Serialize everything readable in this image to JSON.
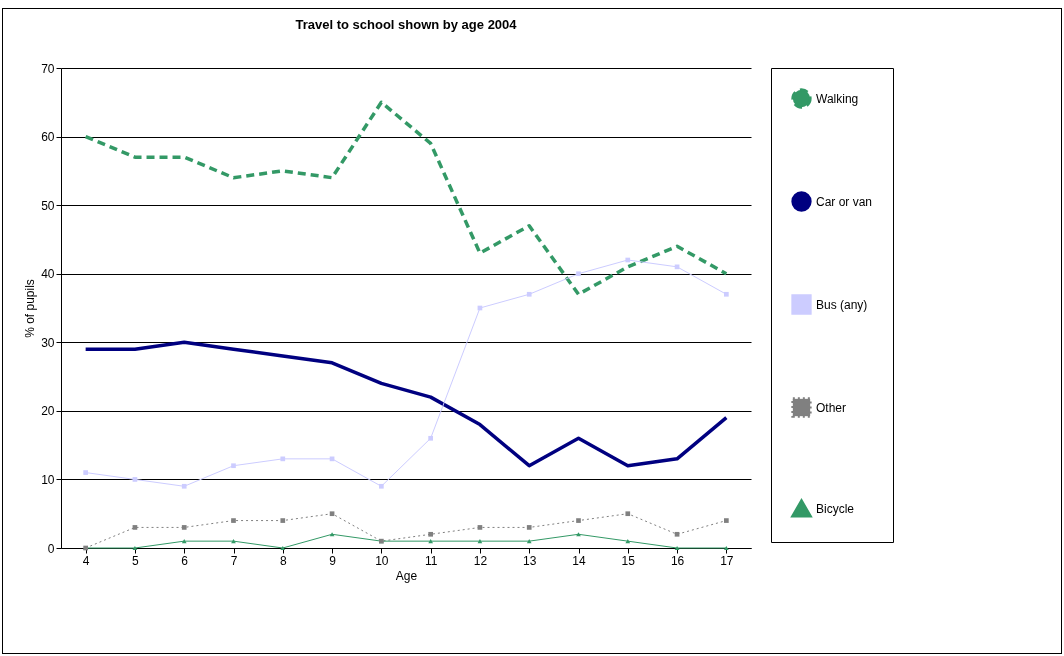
{
  "chart_data": {
    "type": "line",
    "title": "Travel to school shown by age 2004",
    "xlabel": "Age",
    "ylabel": "% of pupils",
    "categories": [
      "4",
      "5",
      "6",
      "7",
      "8",
      "9",
      "10",
      "11",
      "12",
      "13",
      "14",
      "15",
      "16",
      "17"
    ],
    "series": [
      {
        "name": "Walking",
        "color": "#339966",
        "line_style": "dashed",
        "marker": "none",
        "values": [
          60,
          57,
          57,
          54,
          55,
          54,
          65,
          59,
          43,
          47,
          37,
          41,
          44,
          40
        ]
      },
      {
        "name": "Car or van",
        "color": "#000080",
        "line_style": "solid",
        "marker": "none",
        "values": [
          29,
          29,
          30,
          29,
          28,
          27,
          24,
          22,
          18,
          12,
          16,
          12,
          13,
          19
        ]
      },
      {
        "name": "Bus (any)",
        "color": "#ccccff",
        "line_style": "solid",
        "marker": "square",
        "values": [
          11,
          10,
          9,
          12,
          13,
          13,
          9,
          16,
          35,
          37,
          40,
          42,
          41,
          37
        ]
      },
      {
        "name": "Other",
        "color": "#808080",
        "line_style": "dotted",
        "marker": "square",
        "values": [
          0,
          3,
          3,
          4,
          4,
          5,
          1,
          2,
          3,
          3,
          4,
          5,
          2,
          4
        ]
      },
      {
        "name": "Bicycle",
        "color": "#339966",
        "line_style": "solid",
        "marker": "triangle",
        "values": [
          0,
          0,
          1,
          1,
          0,
          2,
          1,
          1,
          1,
          1,
          2,
          1,
          0,
          0
        ]
      }
    ],
    "ylim": [
      0,
      70
    ],
    "yticks": [
      0,
      10,
      20,
      30,
      40,
      50,
      60,
      70
    ],
    "grid": "y",
    "legend": "right"
  }
}
